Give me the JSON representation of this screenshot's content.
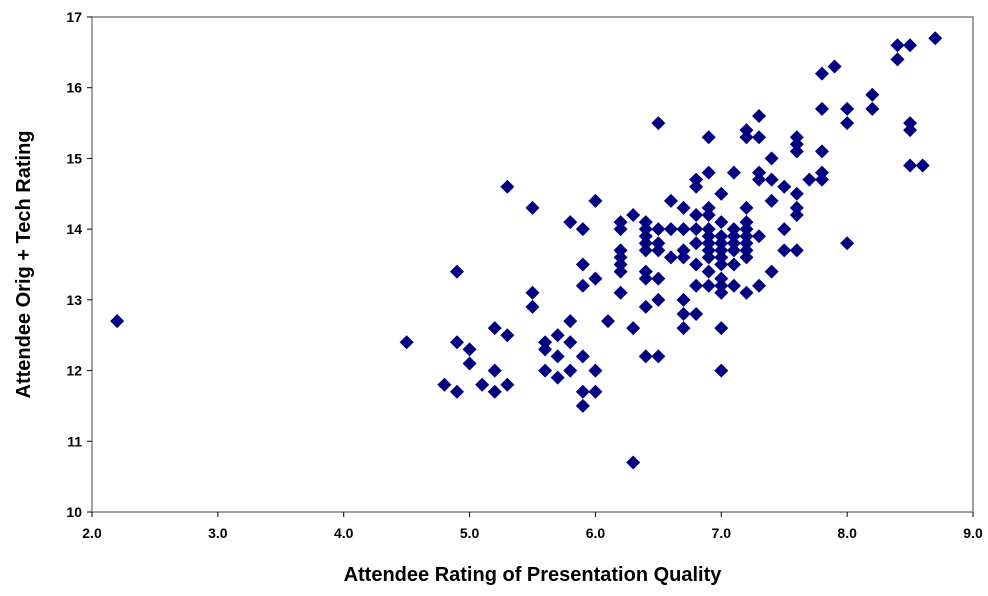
{
  "chart_data": {
    "type": "scatter",
    "title": "",
    "xlabel": "Attendee Rating of Presentation Quality",
    "ylabel": "Attendee Orig + Tech Rating",
    "xlim": [
      2.0,
      9.0
    ],
    "ylim": [
      10,
      17
    ],
    "xticks": [
      "2.0",
      "3.0",
      "4.0",
      "5.0",
      "6.0",
      "7.0",
      "8.0",
      "9.0"
    ],
    "yticks": [
      "10",
      "11",
      "12",
      "13",
      "14",
      "15",
      "16",
      "17"
    ],
    "grid": false,
    "legend": "none",
    "marker": "diamond",
    "marker_color": "#000080",
    "points": [
      [
        2.2,
        12.7
      ],
      [
        4.5,
        12.4
      ],
      [
        4.8,
        11.8
      ],
      [
        4.9,
        11.7
      ],
      [
        4.9,
        12.4
      ],
      [
        4.9,
        13.4
      ],
      [
        5.0,
        12.1
      ],
      [
        5.0,
        12.3
      ],
      [
        5.1,
        11.8
      ],
      [
        5.2,
        11.7
      ],
      [
        5.2,
        12.0
      ],
      [
        5.2,
        12.6
      ],
      [
        5.3,
        11.8
      ],
      [
        5.3,
        12.5
      ],
      [
        5.3,
        14.6
      ],
      [
        5.5,
        12.9
      ],
      [
        5.5,
        13.1
      ],
      [
        5.5,
        14.3
      ],
      [
        5.6,
        12.0
      ],
      [
        5.6,
        12.3
      ],
      [
        5.6,
        12.4
      ],
      [
        5.7,
        11.9
      ],
      [
        5.7,
        12.2
      ],
      [
        5.7,
        12.5
      ],
      [
        5.8,
        12.0
      ],
      [
        5.8,
        12.4
      ],
      [
        5.8,
        12.7
      ],
      [
        5.8,
        14.1
      ],
      [
        5.9,
        11.5
      ],
      [
        5.9,
        11.7
      ],
      [
        5.9,
        12.2
      ],
      [
        5.9,
        13.2
      ],
      [
        5.9,
        13.5
      ],
      [
        5.9,
        14.0
      ],
      [
        6.0,
        11.7
      ],
      [
        6.0,
        12.0
      ],
      [
        6.0,
        13.3
      ],
      [
        6.0,
        14.4
      ],
      [
        6.1,
        12.7
      ],
      [
        6.2,
        13.1
      ],
      [
        6.2,
        13.4
      ],
      [
        6.2,
        13.5
      ],
      [
        6.2,
        13.6
      ],
      [
        6.2,
        13.7
      ],
      [
        6.2,
        14.0
      ],
      [
        6.2,
        14.1
      ],
      [
        6.3,
        10.7
      ],
      [
        6.3,
        12.6
      ],
      [
        6.3,
        14.2
      ],
      [
        6.4,
        12.2
      ],
      [
        6.4,
        12.9
      ],
      [
        6.4,
        13.3
      ],
      [
        6.4,
        13.4
      ],
      [
        6.4,
        13.7
      ],
      [
        6.4,
        13.8
      ],
      [
        6.4,
        13.9
      ],
      [
        6.4,
        14.0
      ],
      [
        6.4,
        14.1
      ],
      [
        6.5,
        12.2
      ],
      [
        6.5,
        13.0
      ],
      [
        6.5,
        13.3
      ],
      [
        6.5,
        13.7
      ],
      [
        6.5,
        13.8
      ],
      [
        6.5,
        14.0
      ],
      [
        6.5,
        15.5
      ],
      [
        6.6,
        13.6
      ],
      [
        6.6,
        14.0
      ],
      [
        6.6,
        14.4
      ],
      [
        6.7,
        12.6
      ],
      [
        6.7,
        12.8
      ],
      [
        6.7,
        13.0
      ],
      [
        6.7,
        13.6
      ],
      [
        6.7,
        13.7
      ],
      [
        6.7,
        14.0
      ],
      [
        6.7,
        14.3
      ],
      [
        6.8,
        12.8
      ],
      [
        6.8,
        13.2
      ],
      [
        6.8,
        13.5
      ],
      [
        6.8,
        13.8
      ],
      [
        6.8,
        14.0
      ],
      [
        6.8,
        14.2
      ],
      [
        6.8,
        14.6
      ],
      [
        6.8,
        14.7
      ],
      [
        6.9,
        13.2
      ],
      [
        6.9,
        13.4
      ],
      [
        6.9,
        13.6
      ],
      [
        6.9,
        13.7
      ],
      [
        6.9,
        13.8
      ],
      [
        6.9,
        13.9
      ],
      [
        6.9,
        14.0
      ],
      [
        6.9,
        14.2
      ],
      [
        6.9,
        14.3
      ],
      [
        6.9,
        14.8
      ],
      [
        6.9,
        15.3
      ],
      [
        7.0,
        12.0
      ],
      [
        7.0,
        12.6
      ],
      [
        7.0,
        13.1
      ],
      [
        7.0,
        13.2
      ],
      [
        7.0,
        13.3
      ],
      [
        7.0,
        13.5
      ],
      [
        7.0,
        13.6
      ],
      [
        7.0,
        13.7
      ],
      [
        7.0,
        13.8
      ],
      [
        7.0,
        13.9
      ],
      [
        7.0,
        14.1
      ],
      [
        7.0,
        14.5
      ],
      [
        7.1,
        13.2
      ],
      [
        7.1,
        13.5
      ],
      [
        7.1,
        13.7
      ],
      [
        7.1,
        13.8
      ],
      [
        7.1,
        13.9
      ],
      [
        7.1,
        14.0
      ],
      [
        7.1,
        14.8
      ],
      [
        7.2,
        13.1
      ],
      [
        7.2,
        13.6
      ],
      [
        7.2,
        13.7
      ],
      [
        7.2,
        13.8
      ],
      [
        7.2,
        13.9
      ],
      [
        7.2,
        14.0
      ],
      [
        7.2,
        14.1
      ],
      [
        7.2,
        14.3
      ],
      [
        7.2,
        15.3
      ],
      [
        7.2,
        15.4
      ],
      [
        7.3,
        13.2
      ],
      [
        7.3,
        13.9
      ],
      [
        7.3,
        14.7
      ],
      [
        7.3,
        14.8
      ],
      [
        7.3,
        15.3
      ],
      [
        7.3,
        15.6
      ],
      [
        7.4,
        13.4
      ],
      [
        7.4,
        14.4
      ],
      [
        7.4,
        14.7
      ],
      [
        7.4,
        15.0
      ],
      [
        7.5,
        13.7
      ],
      [
        7.5,
        14.0
      ],
      [
        7.5,
        14.6
      ],
      [
        7.6,
        13.7
      ],
      [
        7.6,
        14.2
      ],
      [
        7.6,
        14.3
      ],
      [
        7.6,
        14.5
      ],
      [
        7.6,
        15.1
      ],
      [
        7.6,
        15.2
      ],
      [
        7.6,
        15.3
      ],
      [
        7.7,
        14.7
      ],
      [
        7.8,
        14.7
      ],
      [
        7.8,
        14.8
      ],
      [
        7.8,
        15.1
      ],
      [
        7.8,
        15.7
      ],
      [
        7.8,
        16.2
      ],
      [
        7.9,
        16.3
      ],
      [
        8.0,
        13.8
      ],
      [
        8.0,
        15.5
      ],
      [
        8.0,
        15.7
      ],
      [
        8.2,
        15.7
      ],
      [
        8.2,
        15.9
      ],
      [
        8.4,
        16.4
      ],
      [
        8.4,
        16.6
      ],
      [
        8.5,
        14.9
      ],
      [
        8.5,
        15.4
      ],
      [
        8.5,
        15.5
      ],
      [
        8.5,
        16.6
      ],
      [
        8.6,
        14.9
      ],
      [
        8.7,
        16.7
      ]
    ]
  }
}
